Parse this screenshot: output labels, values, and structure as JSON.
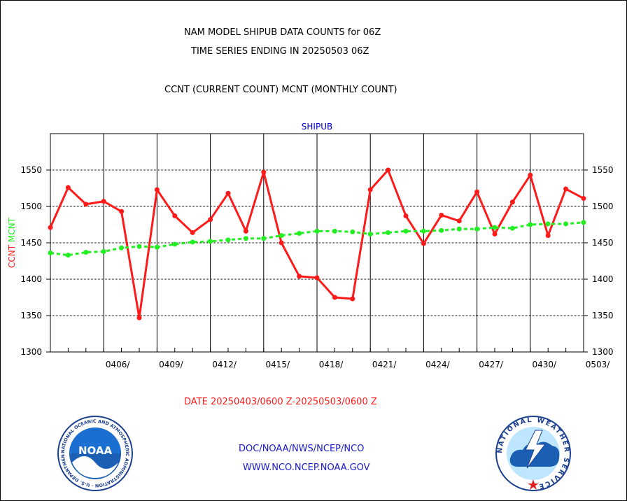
{
  "header": {
    "title_line1": "NAM MODEL SHIPUB DATA COUNTS for 06Z",
    "title_line2": "TIME SERIES ENDING IN 20250503 06Z",
    "title_line3": "CCNT (CURRENT COUNT) MCNT (MONTHLY COUNT)"
  },
  "footer": {
    "date_range": "DATE 20250403/0600 Z-20250503/0600 Z",
    "org_path": "DOC/NOAA/NWS/NCEP/NCO",
    "website": "WWW.NCO.NCEP.NOAA.GOV"
  },
  "logos": {
    "noaa_text": "NOAA",
    "noaa_ring": "NATIONAL OCEANIC AND ATMOSPHERIC ADMINISTRATION · U.S. DEPARTMENT OF COMMERCE",
    "nws_ring": "NATIONAL WEATHER SERVICE"
  },
  "chart_data": {
    "type": "line",
    "title": "SHIPUB",
    "ylabel_left": "CCNT",
    "ylabel_right": "MCNT",
    "ylim": [
      1300,
      1600
    ],
    "yticks": [
      1300,
      1350,
      1400,
      1450,
      1500,
      1550
    ],
    "xlim": [
      0,
      30
    ],
    "x_tick_positions": [
      3,
      6,
      9,
      12,
      15,
      18,
      21,
      24,
      27,
      30
    ],
    "x_tick_labels": [
      "0406/",
      "0409/",
      "0412/",
      "0415/",
      "0418/",
      "0421/",
      "0424/",
      "0427/",
      "0430/",
      "0503/"
    ],
    "grid": true,
    "colors": {
      "ccnt": "#ff1a1a",
      "mcnt": "#22ee22",
      "title": "#0000cc",
      "axis": "#000000"
    },
    "series": [
      {
        "name": "CCNT",
        "style": "solid",
        "x": [
          0,
          1,
          2,
          3,
          4,
          5,
          6,
          7,
          8,
          9,
          10,
          11,
          12,
          13,
          14,
          15,
          16,
          17,
          18,
          19,
          20,
          21,
          22,
          23,
          24,
          25,
          26,
          27,
          28,
          29,
          30
        ],
        "values": [
          1471,
          1526,
          1503,
          1507,
          1493,
          1347,
          1523,
          1487,
          1464,
          1482,
          1518,
          1466,
          1547,
          1450,
          1404,
          1402,
          1375,
          1373,
          1523,
          1550,
          1487,
          1449,
          1488,
          1480,
          1520,
          1462,
          1506,
          1543,
          1460,
          1524,
          1511
        ]
      },
      {
        "name": "MCNT",
        "style": "dashed",
        "x": [
          0,
          1,
          2,
          3,
          4,
          5,
          6,
          7,
          8,
          9,
          10,
          11,
          12,
          13,
          14,
          15,
          16,
          17,
          18,
          19,
          20,
          21,
          22,
          23,
          24,
          25,
          26,
          27,
          28,
          29,
          30
        ],
        "values": [
          1436,
          1433,
          1437,
          1438,
          1443,
          1445,
          1444,
          1448,
          1451,
          1452,
          1454,
          1456,
          1456,
          1460,
          1463,
          1466,
          1466,
          1465,
          1462,
          1464,
          1466,
          1466,
          1467,
          1469,
          1469,
          1471,
          1470,
          1475,
          1476,
          1476,
          1478
        ]
      }
    ]
  }
}
